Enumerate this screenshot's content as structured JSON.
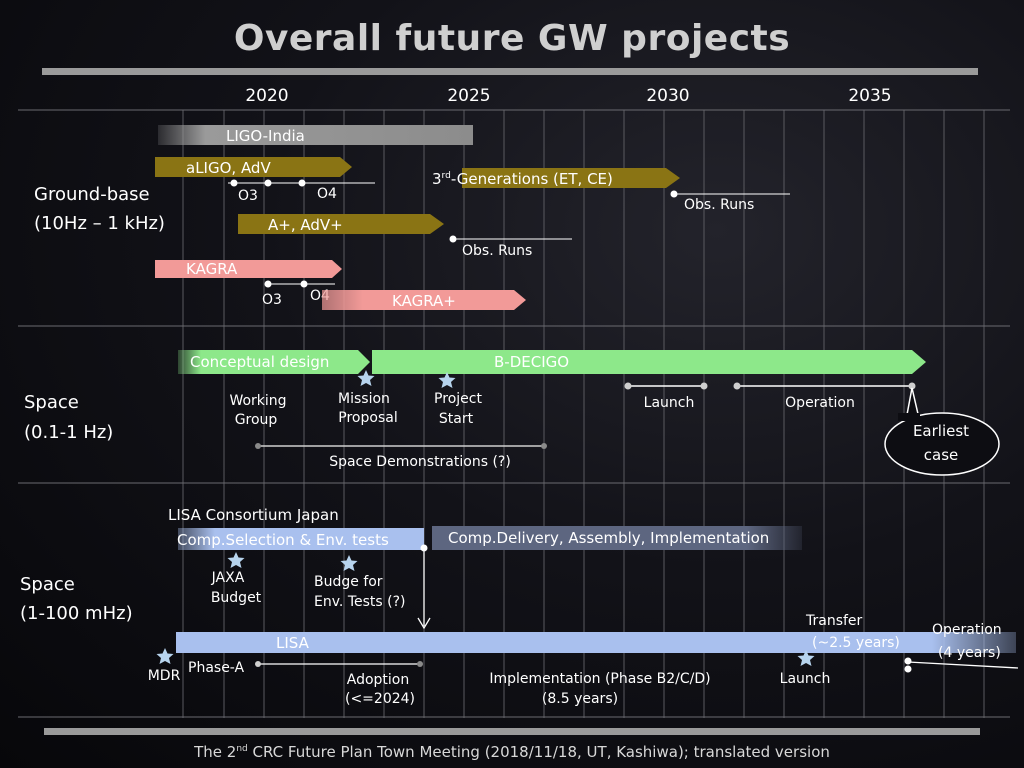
{
  "title": "Overall future GW projects",
  "footer": {
    "before": "The 2",
    "sup": "nd",
    "after": " CRC Future Plan Town Meeting  (2018/11/18, UT, Kashiwa); translated version"
  },
  "axis": {
    "years": [
      "2020",
      "2025",
      "2030",
      "2035"
    ]
  },
  "sections": {
    "ground": {
      "label1": "Ground-base",
      "label2": "(10Hz – 1 kHz)"
    },
    "space_decigo": {
      "label1": "Space",
      "label2": "(0.1-1 Hz)"
    },
    "space_lisa": {
      "label1": "Space",
      "label2": "(1-100 mHz)"
    }
  },
  "ground": {
    "ligo_india": "LIGO-India",
    "aligo": "aLIGO, AdV",
    "o3": "O3",
    "o4": "O4",
    "aplus": "A+, AdV+",
    "obs_runs_1": "Obs. Runs",
    "third_gen_pre": "3",
    "third_gen_sup": "rd",
    "third_gen_post": "-Generations (ET, CE)",
    "obs_runs_2": "Obs. Runs",
    "kagra": "KAGRA",
    "kagra_o3": "O3",
    "kagra_o4": "O4",
    "kagra_plus": "KAGRA+"
  },
  "decigo": {
    "conceptual": "Conceptual design",
    "bdecigo": "B-DECIGO",
    "working1": "Working",
    "working2": "Group",
    "mission1": "Mission",
    "mission2": "Proposal",
    "project1": "Project",
    "project2": "Start",
    "launch": "Launch",
    "operation": "Operation",
    "demos": "Space Demonstrations (?)",
    "earliest1": "Earliest",
    "earliest2": "case"
  },
  "lisa": {
    "consortium": "LISA Consortium Japan",
    "comp_selection": "Comp.Selection & Env. tests",
    "comp_delivery": "Comp.Delivery, Assembly, Implementation",
    "jaxa1": "JAXA",
    "jaxa2": "Budget",
    "budge1": "Budge for",
    "budge2": "Env. Tests (?)",
    "lisa": "LISA",
    "transfer1": "Transfer",
    "transfer2": "(~2.5 years)",
    "operation1": "Operation",
    "operation2": "(4 years)",
    "mdr": "MDR",
    "phase_a": "Phase-A",
    "adoption1": "Adoption",
    "adoption2": "(<=2024)",
    "implementation1": "Implementation (Phase B2/C/D)",
    "implementation2": "(8.5 years)",
    "launch": "Launch"
  },
  "colors": {
    "grey_bar": "#8c8c8c",
    "gold_bar": "#8a7414",
    "pink_bar": "#f29a98",
    "green_bar": "#8de88a",
    "blue_bar": "#a9c0ee",
    "slate_bar": "#5d6680",
    "star": "#b7d4ee"
  }
}
